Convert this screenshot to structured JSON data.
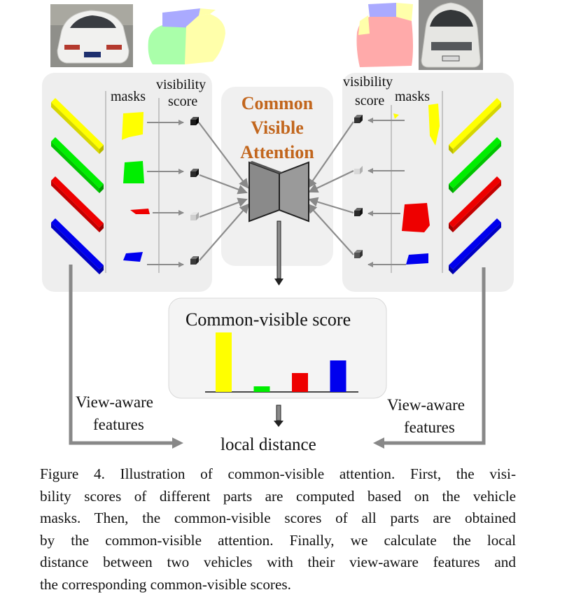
{
  "labels": {
    "masks_left": "masks",
    "visibility_left": "visibility",
    "score_left": "score",
    "visibility_right": "visibility",
    "score_right": "score",
    "masks_right": "masks",
    "center_title": [
      "Common",
      "Visible",
      "Attention"
    ],
    "score_box_title": "Common-visible score",
    "view_aware_left": [
      "View-aware",
      "features"
    ],
    "view_aware_right": [
      "View-aware",
      "features"
    ],
    "local_distance": "local distance"
  },
  "colors": {
    "parts": [
      "#ffff00",
      "#00ee00",
      "#ee0000",
      "#0000ee"
    ],
    "title_orange": "#c2661d",
    "panel_bg": "#eeeeee",
    "arrow_gray": "#8c8c8c"
  },
  "icons": {
    "left_car": "white-sedan-rear-photo-icon",
    "left_mask": "vehicle-part-mask-icon",
    "right_mask": "vehicle-part-mask-icon",
    "right_car": "white-sedan-front-photo-icon",
    "network": "bottleneck-network-icon"
  },
  "chart_data": {
    "type": "bar",
    "title": "Common-visible score",
    "categories": [
      "",
      "",
      "",
      ""
    ],
    "colors": [
      "#ffff00",
      "#00ee00",
      "#ee0000",
      "#0000ee"
    ],
    "values": [
      0.85,
      0.08,
      0.27,
      0.45
    ],
    "ylim": [
      0,
      1
    ],
    "axis_shown": false
  },
  "caption": [
    "Figure 4. Illustration of common-visible attention. First, the visi-",
    "bility scores of different parts are computed based on the vehicle",
    "masks. Then, the common-visible scores of all parts are obtained",
    "by the common-visible attention. Finally, we calculate the local",
    "distance between two vehicles with their view-aware features and",
    "the corresponding common-visible scores."
  ]
}
